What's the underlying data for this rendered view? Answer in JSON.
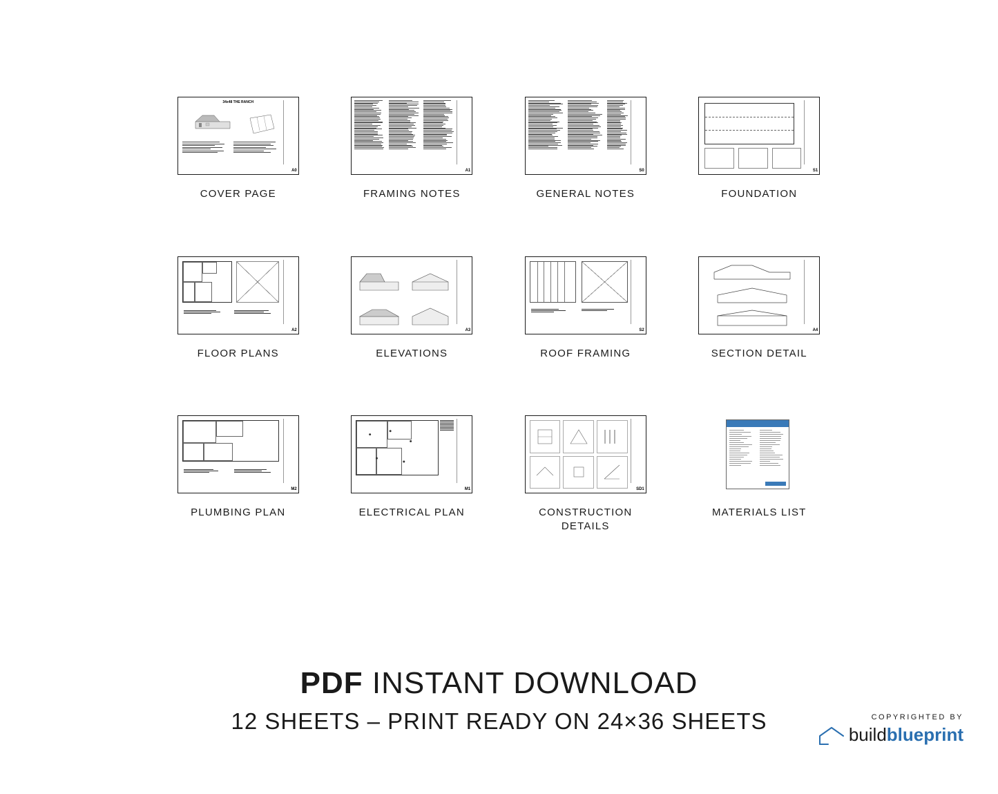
{
  "sheets": [
    {
      "caption": "COVER PAGE",
      "code": "A0",
      "doc_title": "34x48 THE RANCH"
    },
    {
      "caption": "FRAMING NOTES",
      "code": "A1"
    },
    {
      "caption": "GENERAL NOTES",
      "code": "S0"
    },
    {
      "caption": "FOUNDATION",
      "code": "S1"
    },
    {
      "caption": "FLOOR PLANS",
      "code": "A2"
    },
    {
      "caption": "ELEVATIONS",
      "code": "A3"
    },
    {
      "caption": "ROOF FRAMING",
      "code": "S2"
    },
    {
      "caption": "SECTION DETAIL",
      "code": "A4"
    },
    {
      "caption": "PLUMBING PLAN",
      "code": "M2"
    },
    {
      "caption": "ELECTRICAL PLAN",
      "code": "M1"
    },
    {
      "caption": "CONSTRUCTION\nDETAILS",
      "code": "SD1"
    },
    {
      "caption": "MATERIALS LIST",
      "code": ""
    }
  ],
  "headline_bold": "PDF",
  "headline_rest": " INSTANT DOWNLOAD",
  "subhead": "12 SHEETS – PRINT READY ON 24×36 SHEETS",
  "copyright": "COPYRIGHTED BY",
  "logo": {
    "build": "build",
    "blueprint": "blueprint"
  },
  "colors": {
    "text": "#1a1a1a",
    "accent": "#2a6fb0",
    "border": "#1a1a1a",
    "materials_header": "#3a7ab8"
  }
}
